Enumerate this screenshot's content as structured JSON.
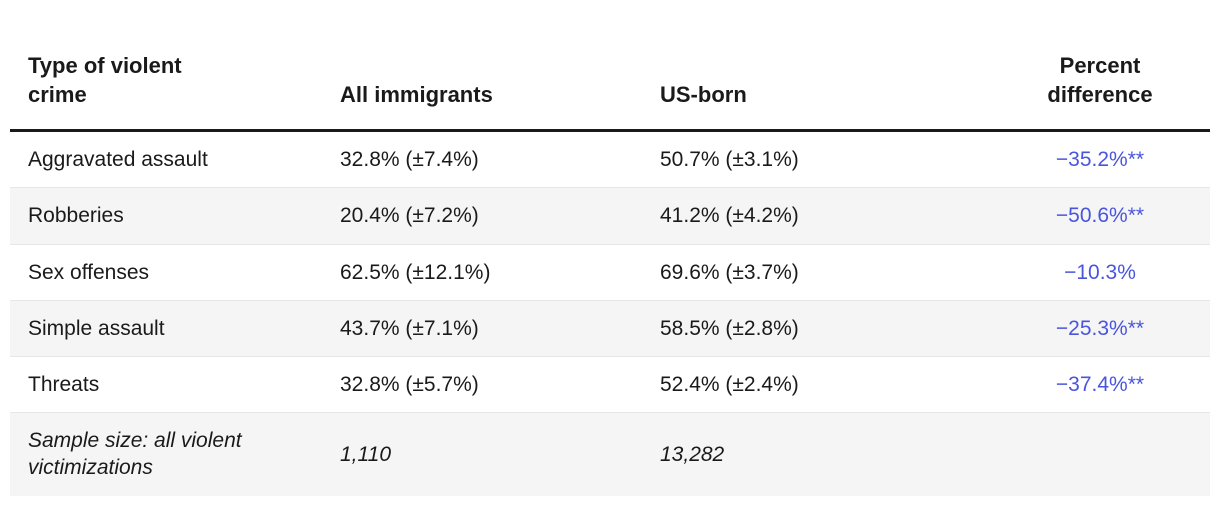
{
  "colors": {
    "accent_blue": "#4a55dd",
    "stripe": "#f5f5f5",
    "header_rule": "#1a1a1a",
    "divider": "#e7e7e7",
    "text": "#1a1a1a"
  },
  "table": {
    "columns": {
      "crime": "Type of violent crime",
      "all_immigrants": "All immigrants",
      "us_born": "US-born",
      "percent_difference": "Percent difference"
    },
    "rows": [
      {
        "crime": "Aggravated assault",
        "all_immigrants": "32.8% (±7.4%)",
        "us_born": "50.7% (±3.1%)",
        "percent_difference": "−35.2%**"
      },
      {
        "crime": "Robberies",
        "all_immigrants": "20.4% (±7.2%)",
        "us_born": "41.2% (±4.2%)",
        "percent_difference": "−50.6%**"
      },
      {
        "crime": "Sex offenses",
        "all_immigrants": "62.5% (±12.1%)",
        "us_born": "69.6% (±3.7%)",
        "percent_difference": "−10.3%"
      },
      {
        "crime": "Simple assault",
        "all_immigrants": "43.7% (±7.1%)",
        "us_born": "58.5% (±2.8%)",
        "percent_difference": "−25.3%**"
      },
      {
        "crime": "Threats",
        "all_immigrants": "32.8% (±5.7%)",
        "us_born": "52.4% (±2.4%)",
        "percent_difference": "−37.4%**"
      }
    ],
    "footer": {
      "crime": "Sample size: all violent victimizations",
      "all_immigrants": "1,110",
      "us_born": "13,282",
      "percent_difference": ""
    }
  },
  "chart_data": {
    "type": "table",
    "columns": [
      "Type of violent crime",
      "All immigrants",
      "US-born",
      "Percent difference"
    ],
    "rows": [
      [
        "Aggravated assault",
        "32.8% (±7.4%)",
        "50.7% (±3.1%)",
        "−35.2%**"
      ],
      [
        "Robberies",
        "20.4% (±7.2%)",
        "41.2% (±4.2%)",
        "−50.6%**"
      ],
      [
        "Sex offenses",
        "62.5% (±12.1%)",
        "69.6% (±3.7%)",
        "−10.3%"
      ],
      [
        "Simple assault",
        "43.7% (±7.1%)",
        "58.5% (±2.8%)",
        "−25.3%**"
      ],
      [
        "Threats",
        "32.8% (±5.7%)",
        "52.4% (±2.4%)",
        "−37.4%**"
      ],
      [
        "Sample size: all violent victimizations",
        "1,110",
        "13,282",
        ""
      ]
    ],
    "notes": "Blue percent-difference values; ** marks statistical significance; last row is sample sizes in italics"
  }
}
